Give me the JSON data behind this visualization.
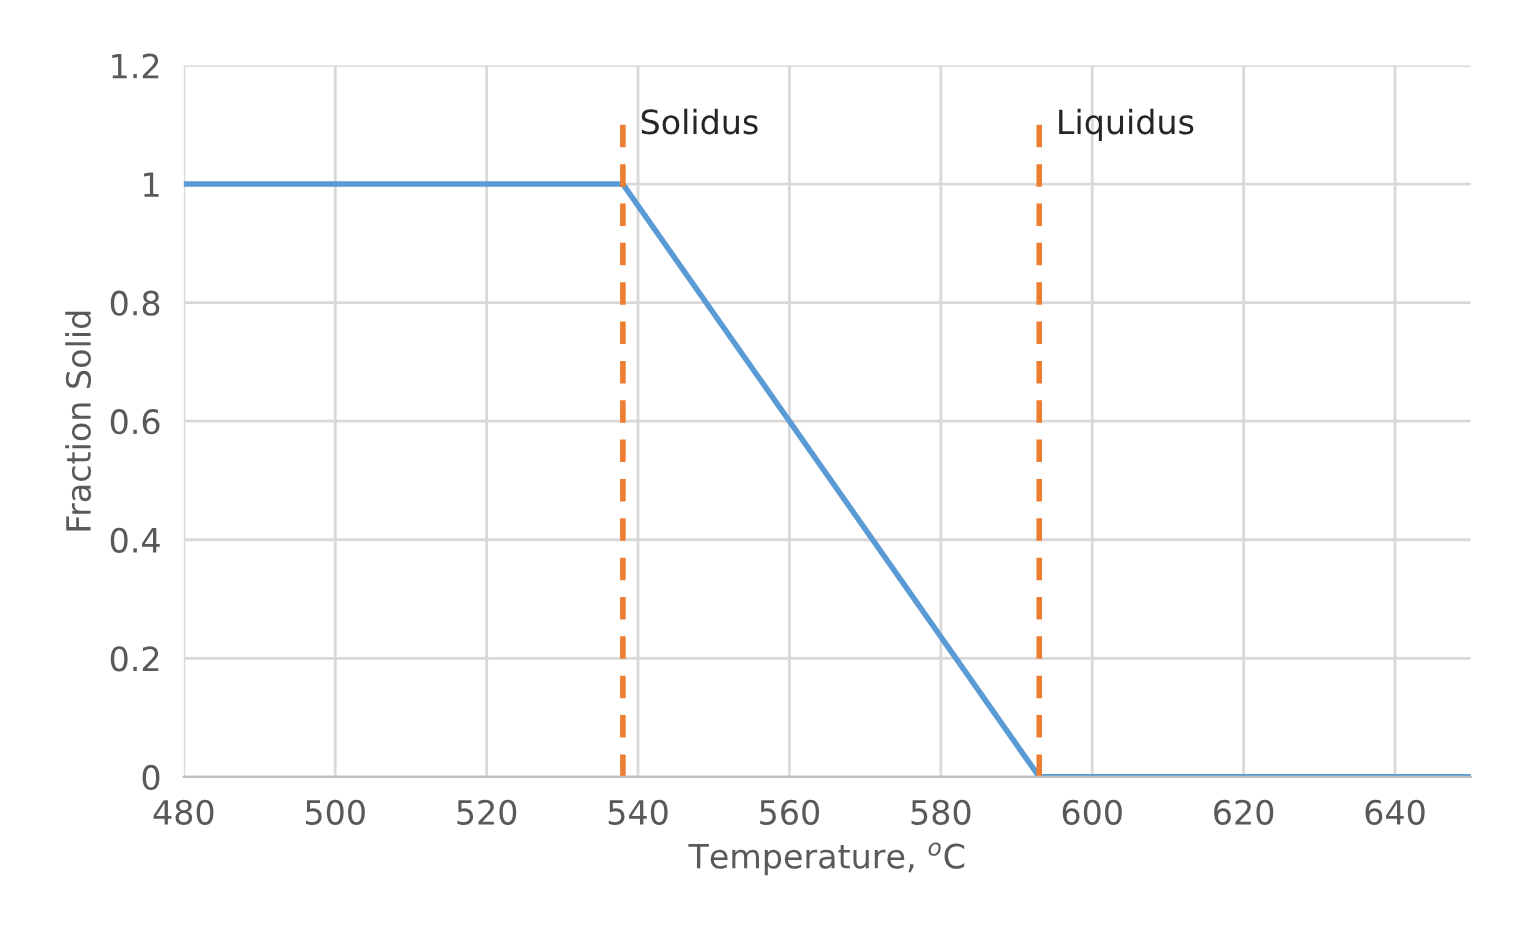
{
  "chart_data": {
    "type": "line",
    "xlabel": "Temperature, $^{o}$C",
    "ylabel": "Fraction Solid",
    "xlim": [
      480,
      650
    ],
    "xticks": [
      480,
      500,
      520,
      540,
      560,
      580,
      600,
      620,
      640
    ],
    "ylim": [
      0,
      1.2
    ],
    "yticks": [
      0,
      0.2,
      0.4,
      0.6,
      0.8,
      1,
      1.2
    ],
    "grid": true,
    "legend": false,
    "marker": "none",
    "series": [
      {
        "color": "#5b9bd5",
        "x": [
          480,
          538,
          593,
          650
        ],
        "values": [
          1,
          1,
          0,
          0
        ],
        "line_style": "solid"
      },
      {
        "color": "#ed7d31",
        "x": [
          538,
          538
        ],
        "values": [
          0,
          1.1
        ],
        "line_style": "dashed"
      },
      {
        "color": "#ed7d31",
        "x": [
          593,
          593
        ],
        "values": [
          0,
          1.1
        ],
        "line_style": "dashed"
      }
    ],
    "annotations": [
      {
        "text": "Solidus",
        "x": 538,
        "y": 1.1
      },
      {
        "text": "Liquidus",
        "x": 593,
        "y": 1.1
      }
    ]
  }
}
